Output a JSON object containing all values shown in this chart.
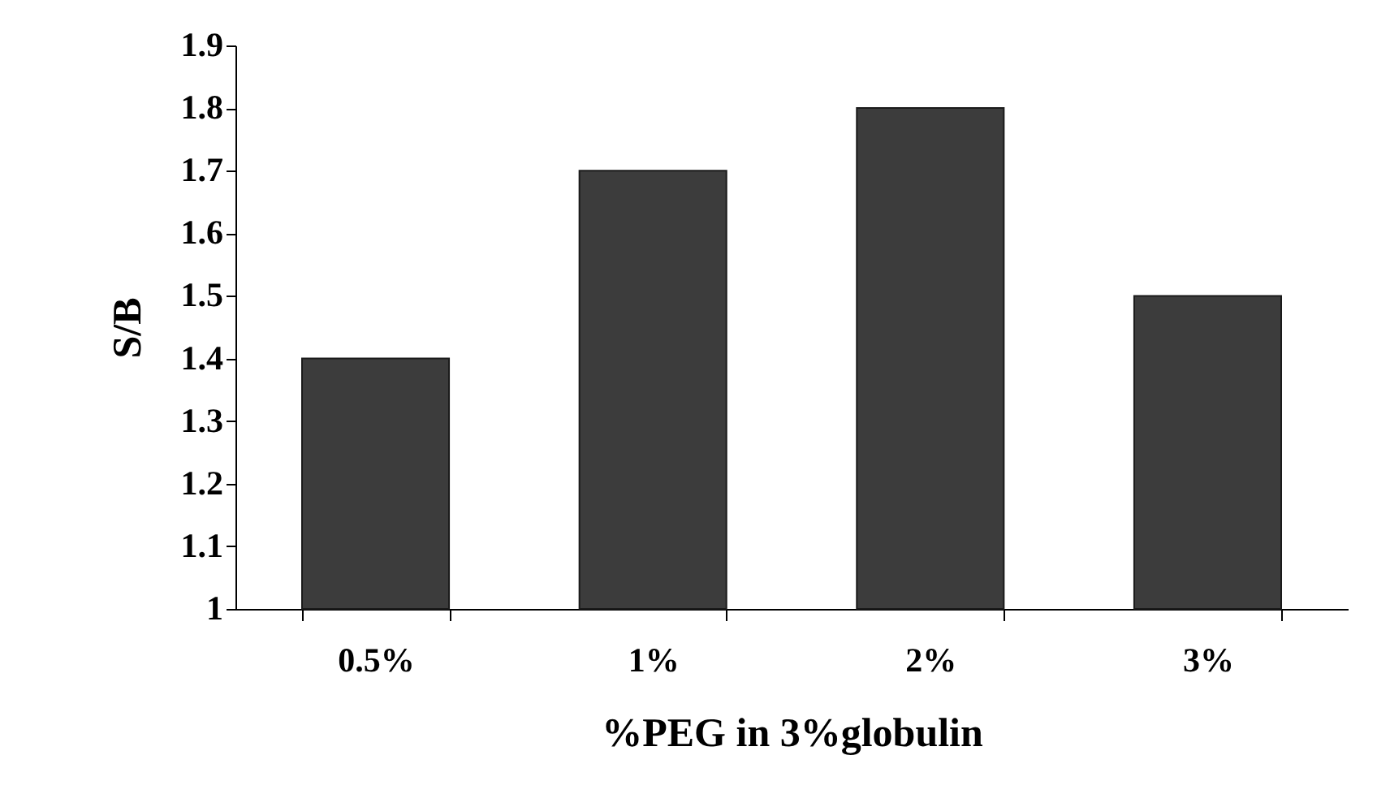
{
  "chart_data": {
    "type": "bar",
    "xlabel": "%PEG in 3%globulin",
    "ylabel": "S/B",
    "categories": [
      "0.5%",
      "1%",
      "2%",
      "3%"
    ],
    "values": [
      1.4,
      1.7,
      1.8,
      1.5
    ],
    "color": "#3c3c3c",
    "ylim": [
      1,
      1.9
    ],
    "yticks": [
      1,
      1.1,
      1.2,
      1.3,
      1.4,
      1.5,
      1.6,
      1.7,
      1.8,
      1.9
    ],
    "grid": false
  }
}
